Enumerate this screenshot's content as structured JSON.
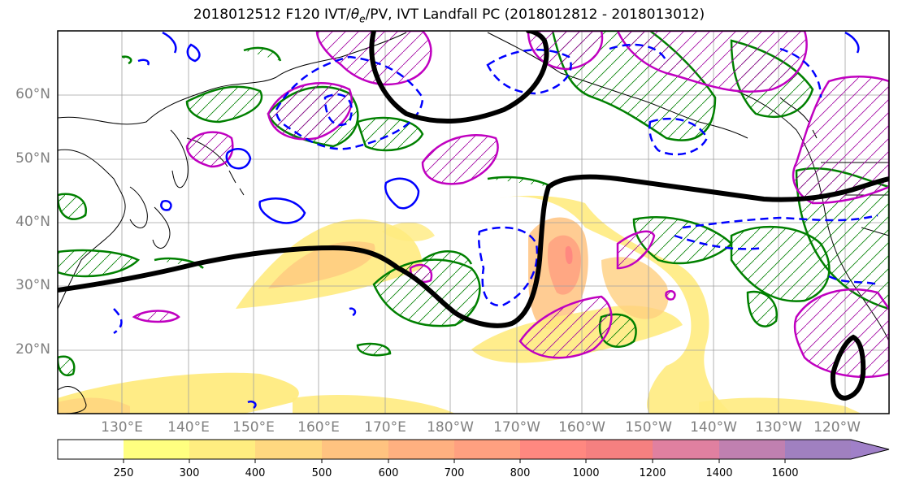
{
  "title_prefix": "2018012512 F120 IVT/",
  "title_theta": "θ",
  "title_theta_sub": "e",
  "title_suffix": "/PV, IVT Landfall PC (2018012812 - 2018013012)",
  "lat_labels": [
    "60°N",
    "50°N",
    "40°N",
    "30°N",
    "20°N"
  ],
  "lon_labels": [
    "130°E",
    "140°E",
    "150°E",
    "160°E",
    "170°E",
    "180°W",
    "170°W",
    "160°W",
    "150°W",
    "140°W",
    "130°W",
    "120°W"
  ],
  "colorbar": {
    "tick_labels": [
      "250",
      "300",
      "400",
      "500",
      "600",
      "700",
      "800",
      "1000",
      "1200",
      "1400",
      "1600"
    ],
    "colors": [
      "#ffffff",
      "#ffff80",
      "#ffed80",
      "#ffd880",
      "#ffc380",
      "#ffb080",
      "#ffa080",
      "#ff8880",
      "#f58080",
      "#e080a0",
      "#c080b0",
      "#a080c0",
      "#a080c8"
    ]
  },
  "legend_colors": {
    "landfall_pc": "#000000",
    "theta_e": "#008000",
    "pv_positive": "#0000ff",
    "pv_magenta": "#c000c0",
    "land": "#000000"
  }
}
